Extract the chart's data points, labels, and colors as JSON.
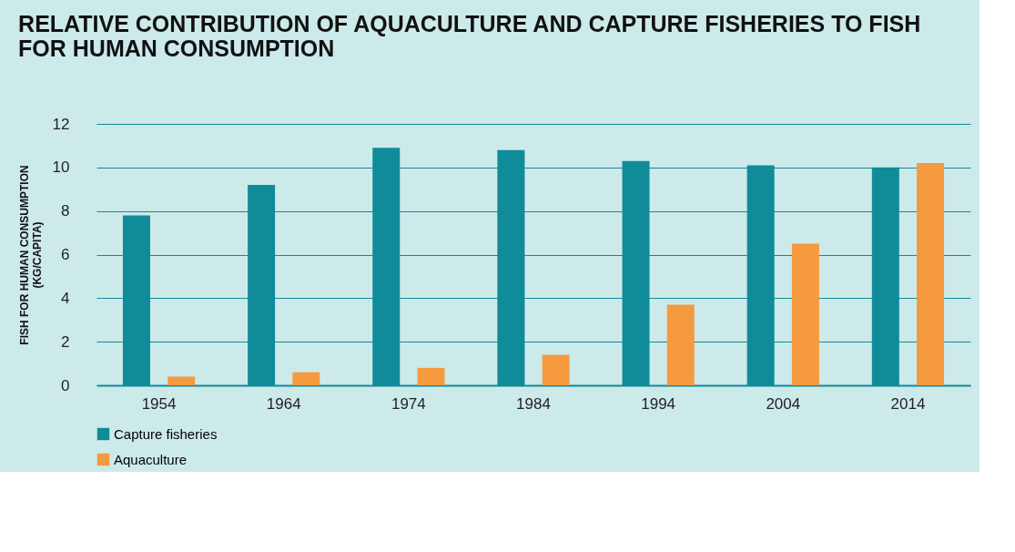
{
  "chart_data": {
    "type": "bar",
    "title": [
      "RELATIVE CONTRIBUTION OF AQUACULTURE AND CAPTURE FISHERIES TO FISH",
      "FOR HUMAN CONSUMPTION"
    ],
    "ylabel": [
      "FISH FOR HUMAN CONSUMPTION",
      "(KG/CAPITA)"
    ],
    "categories": [
      "1954",
      "1964",
      "1974",
      "1984",
      "1994",
      "2004",
      "2014"
    ],
    "series": [
      {
        "name": "Capture fisheries",
        "color": "#108b9a",
        "values": [
          7.8,
          9.2,
          10.9,
          10.8,
          10.3,
          10.1,
          10.0
        ]
      },
      {
        "name": "Aquaculture",
        "color": "#f59a3f",
        "values": [
          0.4,
          0.6,
          0.8,
          1.4,
          3.7,
          6.5,
          10.2
        ]
      }
    ],
    "ylim": [
      0,
      12
    ],
    "yticks": [
      0,
      2,
      4,
      6,
      8,
      10,
      12
    ],
    "grid": "y",
    "legend": "bottom left"
  }
}
